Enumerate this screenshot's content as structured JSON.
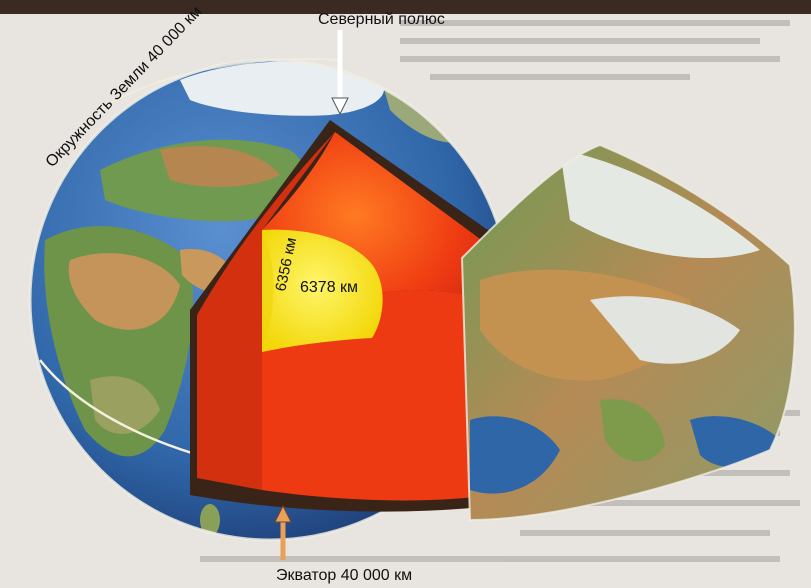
{
  "labels": {
    "north_pole": "Северный полюс",
    "circumference": "Окружность Земли 40 000 км",
    "radius_polar": "6356 км",
    "radius_equatorial": "6378 км",
    "equator": "Экватор 40 000 км"
  },
  "colors": {
    "ocean": "#2f66a8",
    "land_green": "#5f8f4a",
    "land_brown": "#b8874e",
    "mantle": "#ef3b12",
    "mantle_inner": "#d42b0f",
    "core": "#f7e40a",
    "crust": "#3a2418",
    "arrow": "#f2f2f2",
    "arrow_orange": "#e9a15a"
  },
  "icons": [
    "north-pole-arrow-icon",
    "equator-arrow-icon"
  ]
}
